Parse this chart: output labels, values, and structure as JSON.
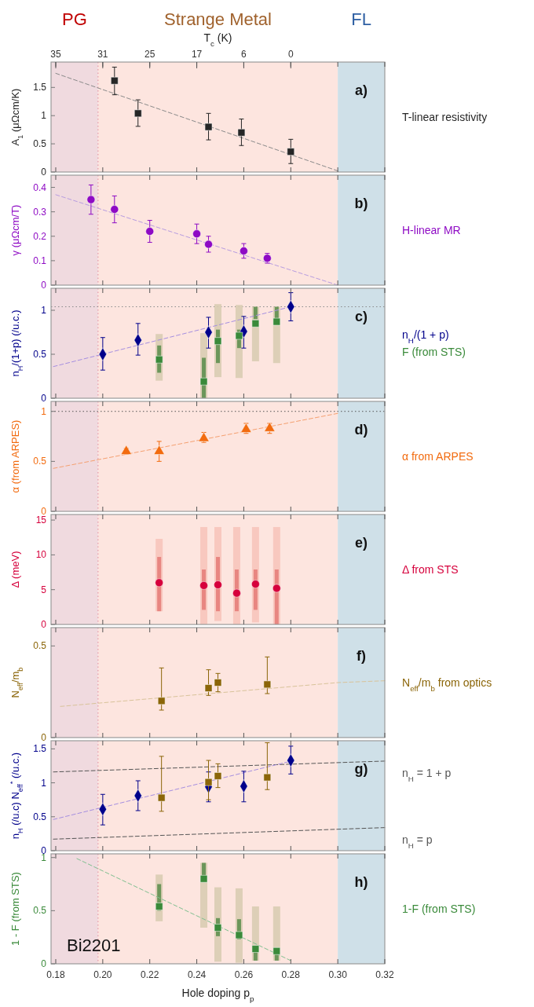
{
  "chart_data": [
    {
      "type": "scatter",
      "xlim": [
        0.178,
        0.32
      ],
      "xticks": [
        0.18,
        0.2,
        0.22,
        0.24,
        0.26,
        0.28,
        0.3,
        0.32
      ],
      "tick_labels": "y",
      "ylim": [
        0,
        1.95
      ],
      "yticks": [
        0,
        0.5,
        1,
        1.5
      ],
      "x2label": "T$_{c}$ (K)",
      "ylabel": "A$_{1}$ (μΩcm/K)",
      "annotations": [
        "a)",
        "35",
        "31",
        "25",
        "17",
        "6",
        "0"
      ],
      "bands": [
        {
          "axis": "x",
          "from": 0.178,
          "to": 0.198,
          "label": "PG",
          "color": "#f0dadf"
        },
        {
          "axis": "x",
          "from": 0.198,
          "to": 0.3,
          "label": "Strange Metal",
          "color": "#fde5df"
        },
        {
          "axis": "x",
          "from": 0.3,
          "to": 0.32,
          "label": "FL",
          "color": "#cfe0e8"
        }
      ],
      "ref_lines": [
        {
          "axis": "x",
          "value": 0.198,
          "color": "#e08a9a",
          "line_style": "dotted"
        }
      ],
      "series": [
        {
          "type": "line",
          "x": [
            0.18,
            0.3
          ],
          "values": [
            1.75,
            0.02
          ],
          "color": "#8a8a8a",
          "line_style": "dashed"
        },
        {
          "name": "T-linear resistivity",
          "x": [
            0.205,
            0.215,
            0.245,
            0.259,
            0.28
          ],
          "values": [
            1.62,
            1.04,
            0.8,
            0.7,
            0.36
          ],
          "errors": [
            [
              1.37,
              1.86
            ],
            [
              0.81,
              1.28
            ],
            [
              0.57,
              1.04
            ],
            [
              0.47,
              0.94
            ],
            [
              0.15,
              0.58
            ]
          ],
          "color": "#262626",
          "marker": "square"
        }
      ]
    },
    {
      "type": "scatter",
      "xlim": [
        0.178,
        0.32
      ],
      "xticks": [
        0.18,
        0.2,
        0.22,
        0.24,
        0.26,
        0.28,
        0.3,
        0.32
      ],
      "tick_labels": "y",
      "ylim": [
        0,
        0.45
      ],
      "yticks": [
        0,
        0.1,
        0.2,
        0.3,
        0.4
      ],
      "ylabel": "γ (μΩcm/T)",
      "annotations": [
        "b)"
      ],
      "bands": [
        {
          "axis": "x",
          "from": 0.178,
          "to": 0.198,
          "color": "#f0dadf"
        },
        {
          "axis": "x",
          "from": 0.198,
          "to": 0.3,
          "color": "#fde5df"
        },
        {
          "axis": "x",
          "from": 0.3,
          "to": 0.32,
          "color": "#cfe0e8"
        }
      ],
      "ref_lines": [
        {
          "axis": "x",
          "value": 0.198,
          "color": "#e08a9a",
          "line_style": "dotted"
        }
      ],
      "series": [
        {
          "type": "line",
          "x": [
            0.18,
            0.3
          ],
          "values": [
            0.37,
            0.0
          ],
          "color": "#b79ce0",
          "line_style": "dashed"
        },
        {
          "name": "H-linear MR",
          "x": [
            0.195,
            0.205,
            0.22,
            0.24,
            0.245,
            0.26,
            0.27
          ],
          "values": [
            0.35,
            0.31,
            0.22,
            0.21,
            0.167,
            0.14,
            0.11
          ],
          "errors": [
            [
              0.29,
              0.41
            ],
            [
              0.255,
              0.365
            ],
            [
              0.175,
              0.265
            ],
            [
              0.17,
              0.25
            ],
            [
              0.135,
              0.2
            ],
            [
              0.11,
              0.17
            ],
            [
              0.09,
              0.13
            ]
          ],
          "color": "#8e0ac4",
          "marker": "circle"
        }
      ]
    },
    {
      "type": "scatter",
      "xlim": [
        0.178,
        0.32
      ],
      "xticks": [
        0.18,
        0.2,
        0.22,
        0.24,
        0.26,
        0.28,
        0.3,
        0.32
      ],
      "tick_labels": "y",
      "ylim": [
        0,
        1.25
      ],
      "yticks": [
        0,
        0.5,
        1
      ],
      "ylabel": "n$_{H}$/(1+p) (/u.c.)",
      "annotations": [
        "c)"
      ],
      "bands": [
        {
          "axis": "x",
          "from": 0.178,
          "to": 0.198,
          "color": "#f0dadf"
        },
        {
          "axis": "x",
          "from": 0.198,
          "to": 0.3,
          "color": "#fde5df"
        },
        {
          "axis": "x",
          "from": 0.3,
          "to": 0.32,
          "color": "#cfe0e8"
        }
      ],
      "ref_lines": [
        {
          "axis": "x",
          "value": 0.198,
          "color": "#e08a9a",
          "line_style": "dotted"
        },
        {
          "axis": "y",
          "value": 1.04,
          "color": "#8a8a8a",
          "line_style": "dotted"
        }
      ],
      "series": [
        {
          "type": "bar",
          "x": [
            0.224,
            0.243,
            0.249,
            0.258,
            0.265,
            0.274
          ],
          "base": [
            0.2,
            0,
            0.24,
            0.23,
            0.42,
            0.4
          ],
          "values": [
            0.53,
            0.74,
            0.83,
            0.83,
            0.62,
            0.64
          ],
          "color": "#d9ccb2"
        },
        {
          "type": "bar",
          "x": [
            0.224,
            0.243,
            0.249,
            0.258,
            0.265,
            0.274
          ],
          "base": [
            0.29,
            0,
            0.4,
            0.57,
            0.9,
            0.9
          ],
          "values": [
            0.31,
            0.46,
            0.38,
            0.21,
            0.14,
            0.14
          ],
          "color": "#5f8f50"
        },
        {
          "type": "line",
          "x": [
            0.179,
            0.28
          ],
          "values": [
            0.36,
            1.04
          ],
          "color": "#a58ee0",
          "line_style": "dashed"
        },
        {
          "name": "n$_{H}$/(1 + p)",
          "x": [
            0.2,
            0.215,
            0.245,
            0.26,
            0.28
          ],
          "values": [
            0.5,
            0.66,
            0.75,
            0.76,
            1.04
          ],
          "errors": [
            [
              0.32,
              0.69
            ],
            [
              0.49,
              0.85
            ],
            [
              0.57,
              0.92
            ],
            [
              0.57,
              0.93
            ],
            [
              0.88,
              1.2
            ]
          ],
          "color": "#00008b",
          "marker": "diamond"
        },
        {
          "name": "F (from STS)",
          "x": [
            0.224,
            0.243,
            0.249,
            0.258,
            0.265,
            0.274
          ],
          "values": [
            0.44,
            0.19,
            0.65,
            0.71,
            0.85,
            0.87
          ],
          "color": "#3a8a3a",
          "marker": "square"
        }
      ]
    },
    {
      "type": "scatter",
      "xlim": [
        0.178,
        0.32
      ],
      "xticks": [
        0.18,
        0.2,
        0.22,
        0.24,
        0.26,
        0.28,
        0.3,
        0.32
      ],
      "tick_labels": "y",
      "ylim": [
        0,
        1.1
      ],
      "yticks": [
        0,
        0.5,
        1
      ],
      "ylabel": "α (from ARPES)",
      "annotations": [
        "d)"
      ],
      "bands": [
        {
          "axis": "x",
          "from": 0.178,
          "to": 0.198,
          "color": "#f0dadf"
        },
        {
          "axis": "x",
          "from": 0.198,
          "to": 0.3,
          "color": "#fde5df"
        },
        {
          "axis": "x",
          "from": 0.3,
          "to": 0.32,
          "color": "#cfe0e8"
        }
      ],
      "ref_lines": [
        {
          "axis": "x",
          "value": 0.198,
          "color": "#e08a9a",
          "line_style": "dotted"
        },
        {
          "axis": "y",
          "value": 1,
          "color": "#555555",
          "line_style": "dotted"
        }
      ],
      "series": [
        {
          "type": "line",
          "x": [
            0.179,
            0.3
          ],
          "values": [
            0.43,
            0.98
          ],
          "color": "#f5a070",
          "line_style": "dashed"
        },
        {
          "name": "α from ARPES",
          "x": [
            0.21,
            0.224,
            0.243,
            0.261,
            0.271
          ],
          "values": [
            0.6,
            0.6,
            0.73,
            0.82,
            0.83
          ],
          "errors": [
            [
              0.57,
              0.63
            ],
            [
              0.5,
              0.7
            ],
            [
              0.69,
              0.79
            ],
            [
              0.78,
              0.88
            ],
            [
              0.78,
              0.88
            ]
          ],
          "color": "#f26b0f",
          "marker": "triangle"
        }
      ]
    },
    {
      "type": "scatter",
      "xlim": [
        0.178,
        0.32
      ],
      "xticks": [
        0.18,
        0.2,
        0.22,
        0.24,
        0.26,
        0.28,
        0.3,
        0.32
      ],
      "tick_labels": "y",
      "ylim": [
        0,
        15.8
      ],
      "yticks": [
        0,
        5,
        10,
        15
      ],
      "ylabel": "Δ (meV)",
      "annotations": [
        "e)"
      ],
      "bands": [
        {
          "axis": "x",
          "from": 0.178,
          "to": 0.198,
          "color": "#f0dadf"
        },
        {
          "axis": "x",
          "from": 0.198,
          "to": 0.3,
          "color": "#fde5df"
        },
        {
          "axis": "x",
          "from": 0.3,
          "to": 0.32,
          "color": "#cfe0e8"
        }
      ],
      "ref_lines": [
        {
          "axis": "x",
          "value": 0.198,
          "color": "#e08a9a",
          "line_style": "dotted"
        }
      ],
      "series": [
        {
          "type": "bar",
          "x": [
            0.224,
            0.243,
            0.249,
            0.257,
            0.265,
            0.274
          ],
          "base": [
            1.9,
            0,
            0.5,
            0,
            0.3,
            0
          ],
          "values": [
            10.4,
            14,
            13.5,
            14,
            13.7,
            14
          ],
          "color": "#f7c4bb"
        },
        {
          "type": "bar",
          "x": [
            0.224,
            0.243,
            0.249,
            0.257,
            0.265,
            0.274
          ],
          "base": [
            1.9,
            2.1,
            1.9,
            1.9,
            2.1,
            0
          ],
          "values": [
            7.8,
            5.8,
            7.8,
            6,
            5.8,
            7.9
          ],
          "color": "#e67e7a"
        },
        {
          "name": "Δ from STS",
          "x": [
            0.224,
            0.243,
            0.249,
            0.257,
            0.265,
            0.274
          ],
          "values": [
            6,
            5.6,
            5.7,
            4.5,
            5.8,
            5.2
          ],
          "color": "#d6003c",
          "marker": "circle"
        }
      ]
    },
    {
      "type": "scatter",
      "xlim": [
        0.178,
        0.32
      ],
      "xticks": [
        0.18,
        0.2,
        0.22,
        0.24,
        0.26,
        0.28,
        0.3,
        0.32
      ],
      "tick_labels": "y",
      "ylim": [
        0,
        0.6
      ],
      "yticks": [
        0,
        0.5
      ],
      "ylabel": "N$_{eff}$/m$_{b}$",
      "annotations": [
        "f)"
      ],
      "bands": [
        {
          "axis": "x",
          "from": 0.178,
          "to": 0.198,
          "color": "#f0dadf"
        },
        {
          "axis": "x",
          "from": 0.198,
          "to": 0.3,
          "color": "#fde5df"
        },
        {
          "axis": "x",
          "from": 0.3,
          "to": 0.32,
          "color": "#cfe0e8"
        }
      ],
      "ref_lines": [
        {
          "axis": "x",
          "value": 0.198,
          "color": "#e08a9a",
          "line_style": "dotted"
        }
      ],
      "series": [
        {
          "type": "line",
          "x": [
            0.182,
            0.3,
            0.32
          ],
          "values": [
            0.17,
            0.3,
            0.31
          ],
          "color": "#d9c39a",
          "line_style": "dashed"
        },
        {
          "name": "N$_{eff}$/m$_{b}$ from optics",
          "x": [
            0.225,
            0.245,
            0.249,
            0.27
          ],
          "values": [
            0.2,
            0.27,
            0.3,
            0.29
          ],
          "errors": [
            [
              0.15,
              0.38
            ],
            [
              0.23,
              0.37
            ],
            [
              0.25,
              0.35
            ],
            [
              0.24,
              0.44
            ]
          ],
          "color": "#8b6508",
          "marker": "square"
        }
      ]
    },
    {
      "type": "scatter",
      "xlim": [
        0.178,
        0.32
      ],
      "xticks": [
        0.18,
        0.2,
        0.22,
        0.24,
        0.26,
        0.28,
        0.3,
        0.32
      ],
      "tick_labels": "y",
      "ylim": [
        0,
        1.62
      ],
      "yticks": [
        0,
        0.5,
        1,
        1.5
      ],
      "ylabel": "n$_{H}$ (/u.c)   N$_{eff}$$^{*}$ (/u.c.)",
      "annotations": [
        "g)"
      ],
      "bands": [
        {
          "axis": "x",
          "from": 0.178,
          "to": 0.198,
          "color": "#f0dadf"
        },
        {
          "axis": "x",
          "from": 0.198,
          "to": 0.3,
          "color": "#fde5df"
        },
        {
          "axis": "x",
          "from": 0.3,
          "to": 0.32,
          "color": "#cfe0e8"
        }
      ],
      "ref_lines": [
        {
          "axis": "x",
          "value": 0.198,
          "color": "#e08a9a",
          "line_style": "dotted"
        }
      ],
      "series": [
        {
          "type": "line",
          "name": "n$_{H}$ = 1 + p",
          "x": [
            0.179,
            0.32
          ],
          "values": [
            1.16,
            1.32
          ],
          "color": "#555555",
          "line_style": "dashed"
        },
        {
          "type": "line",
          "name": "n$_{H}$ = p",
          "x": [
            0.179,
            0.32
          ],
          "values": [
            0.17,
            0.34
          ],
          "color": "#555555",
          "line_style": "dashed"
        },
        {
          "type": "line",
          "x": [
            0.179,
            0.279
          ],
          "values": [
            0.46,
            1.31
          ],
          "color": "#a58ee0",
          "line_style": "dashed"
        },
        {
          "x": [
            0.2,
            0.215,
            0.245,
            0.26,
            0.28
          ],
          "values": [
            0.61,
            0.81,
            0.94,
            0.95,
            1.33
          ],
          "errors": [
            [
              0.38,
              0.83
            ],
            [
              0.59,
              1.03
            ],
            [
              0.72,
              1.16
            ],
            [
              0.72,
              1.17
            ],
            [
              1.13,
              1.54
            ]
          ],
          "color": "#00008b",
          "marker": "diamond"
        },
        {
          "x": [
            0.225,
            0.245,
            0.249,
            0.27
          ],
          "values": [
            0.78,
            1.01,
            1.1,
            1.08
          ],
          "errors": [
            [
              0.58,
              1.39
            ],
            [
              0.75,
              1.33
            ],
            [
              0.93,
              1.28
            ],
            [
              0.9,
              1.59
            ]
          ],
          "color": "#8b6508",
          "marker": "square"
        }
      ]
    },
    {
      "type": "scatter",
      "xlim": [
        0.178,
        0.32
      ],
      "xticks": [
        0.18,
        {
          "value": 0.2,
          "label": "0.20"
        },
        0.22,
        0.24,
        0.26,
        0.28,
        {
          "value": 0.3,
          "label": "0.30"
        },
        0.32
      ],
      "ylim": [
        0,
        1.035
      ],
      "yticks": [
        0,
        0.5,
        1
      ],
      "ylabel": "1 - F (from STS)",
      "xlabel": "Hole doping p$_{p}$",
      "annotations": [
        "h)",
        "Bi2201"
      ],
      "bands": [
        {
          "axis": "x",
          "from": 0.178,
          "to": 0.198,
          "color": "#f0dadf"
        },
        {
          "axis": "x",
          "from": 0.198,
          "to": 0.3,
          "color": "#fde5df"
        },
        {
          "axis": "x",
          "from": 0.3,
          "to": 0.32,
          "color": "#cfe0e8"
        }
      ],
      "ref_lines": [
        {
          "axis": "x",
          "value": 0.198,
          "color": "#e08a9a",
          "line_style": "dotted"
        }
      ],
      "series": [
        {
          "type": "bar",
          "x": [
            0.224,
            0.243,
            0.249,
            0.258,
            0.265,
            0.274
          ],
          "base": [
            0.4,
            0.34,
            0.02,
            0.01,
            0.03,
            0.03
          ],
          "values": [
            0.44,
            0.61,
            0.7,
            0.7,
            0.51,
            0.51
          ],
          "color": "#d9ccb2"
        },
        {
          "type": "bar",
          "x": [
            0.224,
            0.243,
            0.249,
            0.258,
            0.265,
            0.274
          ],
          "base": [
            0.5,
            0.8,
            0.26,
            0.23,
            0.03,
            0.03
          ],
          "values": [
            0.25,
            0.15,
            0.17,
            0.19,
            0.09,
            0.06
          ],
          "color": "#5f8f50"
        },
        {
          "type": "line",
          "x": [
            0.189,
            0.28
          ],
          "values": [
            0.99,
            0.03
          ],
          "color": "#7fbf8f",
          "line_style": "dashed"
        },
        {
          "name": "1-F (from STS)",
          "x": [
            0.224,
            0.243,
            0.249,
            0.258,
            0.265,
            0.274
          ],
          "values": [
            0.54,
            0.8,
            0.34,
            0.27,
            0.14,
            0.12
          ],
          "color": "#3a8a3a",
          "marker": "square"
        }
      ]
    }
  ]
}
